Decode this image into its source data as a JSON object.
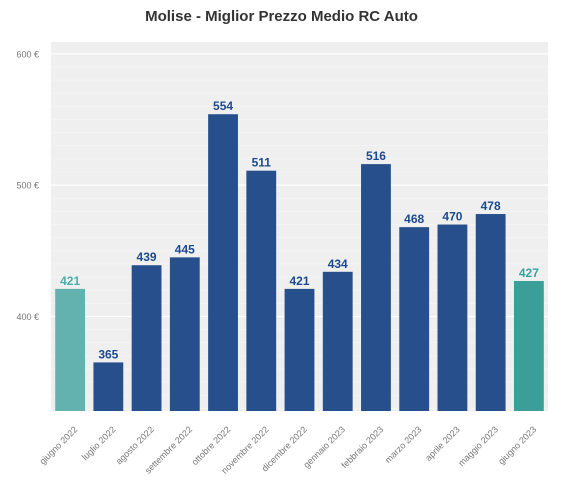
{
  "chart_data": {
    "type": "bar",
    "title": "Molise - Miglior Prezzo Medio RC Auto",
    "xlabel": "",
    "ylabel": "",
    "categories": [
      "giugno 2022",
      "luglio 2022",
      "agosto 2022",
      "settembre 2022",
      "ottobre 2022",
      "novembre 2022",
      "dicembre 2022",
      "gennaio 2023",
      "febbraio 2023",
      "marzo 2023",
      "aprile 2023",
      "maggio 2023",
      "giugno 2023"
    ],
    "values": [
      421,
      365,
      439,
      445,
      554,
      511,
      421,
      434,
      516,
      468,
      470,
      478,
      427
    ],
    "bar_colors": [
      "#63b2b0",
      "#264f8c",
      "#264f8c",
      "#264f8c",
      "#264f8c",
      "#264f8c",
      "#264f8c",
      "#264f8c",
      "#264f8c",
      "#264f8c",
      "#264f8c",
      "#264f8c",
      "#3b9e98"
    ],
    "label_colors": [
      "#4aaea9",
      "#1d4a8e",
      "#1d4a8e",
      "#1d4a8e",
      "#1d4a8e",
      "#1d4a8e",
      "#1d4a8e",
      "#1d4a8e",
      "#1d4a8e",
      "#1d4a8e",
      "#1d4a8e",
      "#1d4a8e",
      "#3aa39e"
    ],
    "yticks": [
      400,
      500,
      600
    ],
    "ytick_labels": [
      "400 €",
      "500 €",
      "600 €"
    ],
    "ylim": [
      328,
      609
    ],
    "grid": true,
    "background_color": "#efefef"
  }
}
